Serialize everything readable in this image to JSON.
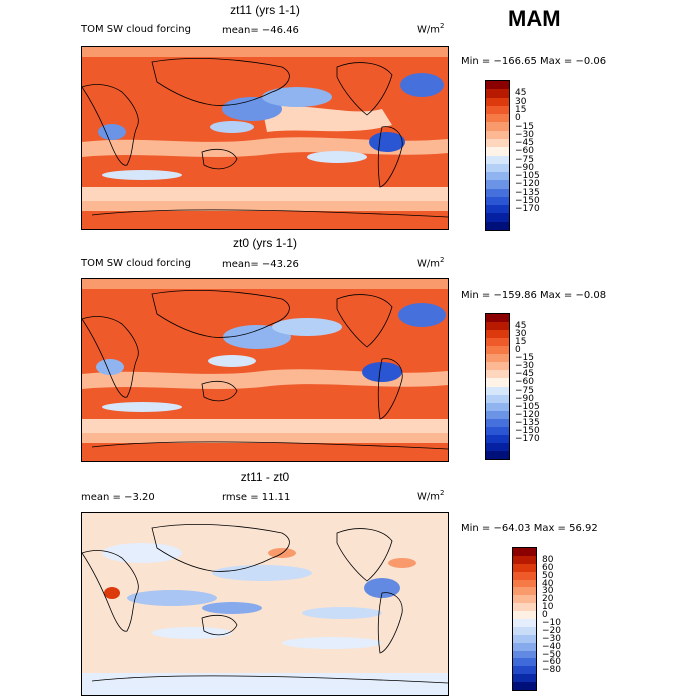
{
  "season": "MAM",
  "colorbar_colors": {
    "forcing": [
      "#8b0000",
      "#b81a00",
      "#dc3a0c",
      "#ef5a2a",
      "#f57a45",
      "#f89a6c",
      "#fbb893",
      "#fdd6bd",
      "#fff2e6",
      "#d6e6fb",
      "#b4d0f7",
      "#8fb4f0",
      "#6b93e6",
      "#4671dd",
      "#2a55d3",
      "#1338c0",
      "#0520a0",
      "#00107a"
    ],
    "diff": [
      "#8b0000",
      "#b81a00",
      "#dc3a0c",
      "#ef5a2a",
      "#f57a45",
      "#f89a6c",
      "#fbb893",
      "#fdd6bd",
      "#fff0e4",
      "#e4eefc",
      "#c9dcf8",
      "#a8c5f3",
      "#86aaec",
      "#628ae3",
      "#3f6ad9",
      "#2249c7",
      "#0b2aa8",
      "#00107a"
    ]
  },
  "panels": [
    {
      "id": "top",
      "title": "zt11 (yrs 1-1)",
      "field_label": "TOM SW cloud forcing",
      "stat": "mean=  −46.46",
      "units": "W/m",
      "units_sup": "2",
      "min_text": "Min = −166.65",
      "max_text": "Max =  −0.06",
      "bg": "#ef5a2a",
      "colorbar_labels": [
        "45",
        "30",
        "15",
        "0",
        "−15",
        "−30",
        "−45",
        "−60",
        "−75",
        "−90",
        "−105",
        "−120",
        "−135",
        "−150",
        "−170"
      ]
    },
    {
      "id": "middle",
      "title": "zt0 (yrs 1-1)",
      "field_label": "TOM SW cloud forcing",
      "stat": "mean=  −43.26",
      "units": "W/m",
      "units_sup": "2",
      "min_text": "Min = −159.86",
      "max_text": "Max =  −0.08",
      "bg": "#ef5a2a",
      "colorbar_labels": [
        "45",
        "30",
        "15",
        "0",
        "−15",
        "−30",
        "−45",
        "−60",
        "−75",
        "−90",
        "−105",
        "−120",
        "−135",
        "−150",
        "−170"
      ]
    },
    {
      "id": "bottom",
      "title": "zt11 - zt0",
      "mean_text": "mean =   −3.20",
      "rmse_text": "rmse =   11.11",
      "units": "W/m",
      "units_sup": "2",
      "min_text": "Min = −64.03",
      "max_text": "Max =  56.92",
      "bg": "#fbe3d2",
      "colorbar_labels": [
        "80",
        "60",
        "50",
        "40",
        "30",
        "20",
        "10",
        "0",
        "−10",
        "−20",
        "−30",
        "−40",
        "−50",
        "−60",
        "−80"
      ]
    }
  ],
  "chart_data": [
    {
      "type": "heatmap",
      "title": "zt11 (yrs 1-1)",
      "subtitle": "TOM SW cloud forcing",
      "mean": -46.46,
      "units": "W/m2",
      "min": -166.65,
      "max": -0.06,
      "levels": [
        45,
        30,
        15,
        0,
        -15,
        -30,
        -45,
        -60,
        -75,
        -90,
        -105,
        -120,
        -135,
        -150,
        -170
      ]
    },
    {
      "type": "heatmap",
      "title": "zt0 (yrs 1-1)",
      "subtitle": "TOM SW cloud forcing",
      "mean": -43.26,
      "units": "W/m2",
      "min": -159.86,
      "max": -0.08,
      "levels": [
        45,
        30,
        15,
        0,
        -15,
        -30,
        -45,
        -60,
        -75,
        -90,
        -105,
        -120,
        -135,
        -150,
        -170
      ]
    },
    {
      "type": "heatmap",
      "title": "zt11 - zt0",
      "mean": -3.2,
      "rmse": 11.11,
      "units": "W/m2",
      "min": -64.03,
      "max": 56.92,
      "levels": [
        80,
        60,
        50,
        40,
        30,
        20,
        10,
        0,
        -10,
        -20,
        -30,
        -40,
        -50,
        -60,
        -80
      ]
    }
  ]
}
